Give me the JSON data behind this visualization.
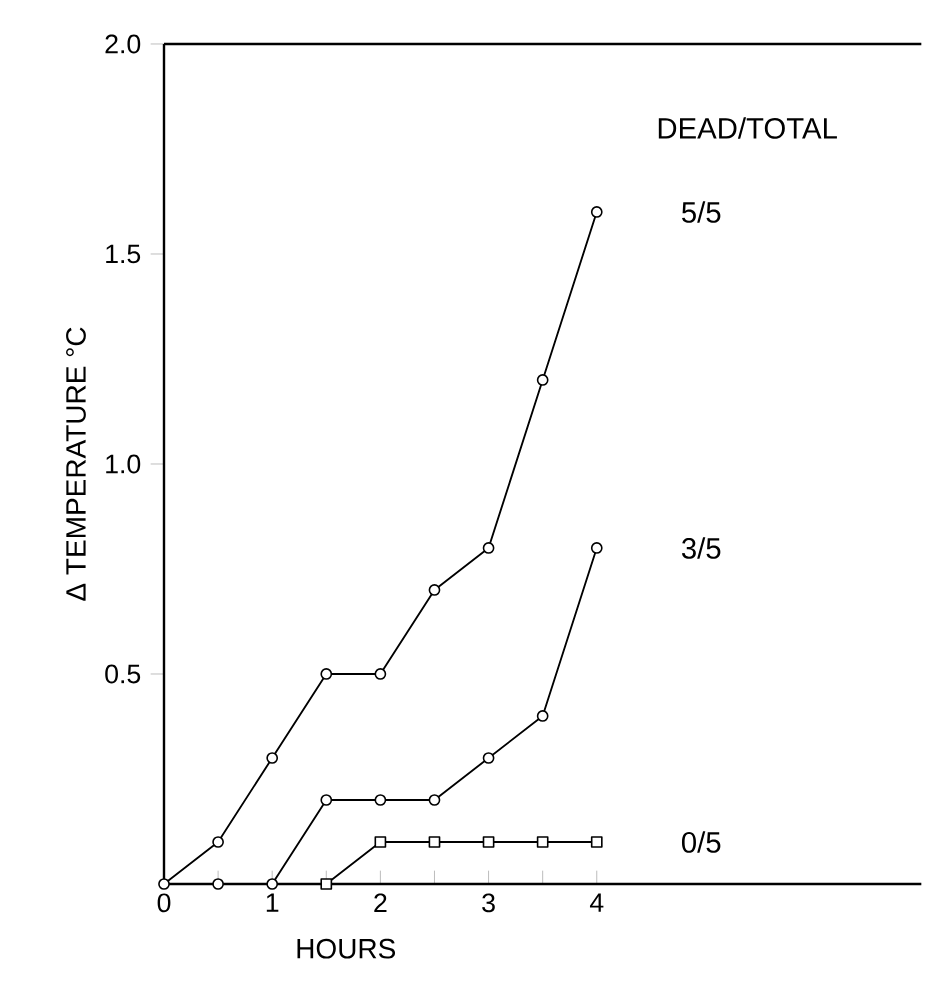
{
  "chart_data": {
    "type": "line",
    "xlabel": "HOURS",
    "ylabel": "Δ TEMPERATURE °C",
    "legend_title": "DEAD/TOTAL",
    "xlim": [
      0,
      7
    ],
    "ylim": [
      0,
      2
    ],
    "xticks": [
      0,
      {
        "value": 0.5,
        "label": null
      },
      1,
      {
        "value": 1.5,
        "label": null
      },
      2,
      {
        "value": 2.5,
        "label": null
      },
      3,
      {
        "value": 3.5,
        "label": null
      },
      4
    ],
    "yticks": [
      0.5,
      {
        "value": 1,
        "label": "1.0"
      },
      1.5,
      {
        "value": 2,
        "label": "2.0"
      }
    ],
    "grid": false,
    "legend": false,
    "line_style": "solid",
    "series": [
      {
        "name": "5/5",
        "color": "#000000",
        "marker": "circle",
        "x": [
          0,
          0.5,
          1,
          1.5,
          2,
          2.5,
          3,
          3.5,
          4
        ],
        "values": [
          0,
          0.1,
          0.3,
          0.5,
          0.5,
          0.7,
          0.8,
          1.2,
          1.6
        ]
      },
      {
        "name": "3/5",
        "color": "#000000",
        "marker": "circle",
        "x": [
          0.5,
          1,
          1.5,
          2,
          2.5,
          3,
          3.5,
          4
        ],
        "values": [
          0,
          0,
          0.2,
          0.2,
          0.2,
          0.3,
          0.4,
          0.8
        ]
      },
      {
        "name": "0/5",
        "color": "#000000",
        "marker": "square",
        "x": [
          1.5,
          2,
          2.5,
          3,
          3.5,
          4
        ],
        "values": [
          0,
          0.1,
          0.1,
          0.1,
          0.1,
          0.1
        ]
      }
    ]
  }
}
